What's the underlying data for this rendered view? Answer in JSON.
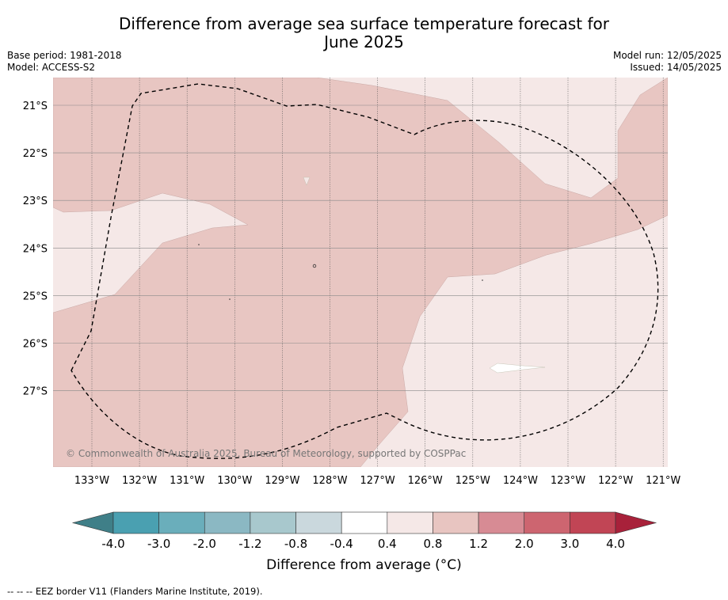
{
  "title": {
    "line1": "Difference from average sea surface temperature forecast for",
    "line2": "June 2025"
  },
  "meta_left": {
    "base_period": "Base period: 1981-2018",
    "model": "Model: ACCESS-S2"
  },
  "meta_right": {
    "model_run": "Model run: 12/05/2025",
    "issued": "Issued: 14/05/2025"
  },
  "map": {
    "lat_labels": [
      "21°S",
      "22°S",
      "23°S",
      "24°S",
      "25°S",
      "26°S",
      "27°S"
    ],
    "lon_labels": [
      "133°W",
      "132°W",
      "131°W",
      "130°W",
      "129°W",
      "128°W",
      "127°W",
      "126°W",
      "125°W",
      "124°W",
      "123°W",
      "122°W",
      "121°W"
    ],
    "copyright": "© Commonwealth of Australia 2025, Bureau of Meteorology, supported by COSPPac"
  },
  "colorbar": {
    "ticks": [
      "-4.0",
      "-3.0",
      "-2.0",
      "-1.2",
      "-0.8",
      "-0.4",
      "0.4",
      "0.8",
      "1.2",
      "2.0",
      "3.0",
      "4.0"
    ],
    "colors": [
      "#3f7f88",
      "#4aa0b1",
      "#6aaebb",
      "#8bb8c3",
      "#a8c8cd",
      "#cad8dd",
      "#ffffff",
      "#f5e8e7",
      "#e8c5c1",
      "#d78b94",
      "#cd6570",
      "#c14555",
      "#a8213a"
    ],
    "title": "Difference from average (°C)"
  },
  "colors": {
    "warm_0_8": "#e8c6c2",
    "warm_0_4": "#f5e8e7",
    "neutral": "#ffffff"
  },
  "footer": "-- -- -- EEZ border V11 (Flanders Marine Institute, 2019)."
}
